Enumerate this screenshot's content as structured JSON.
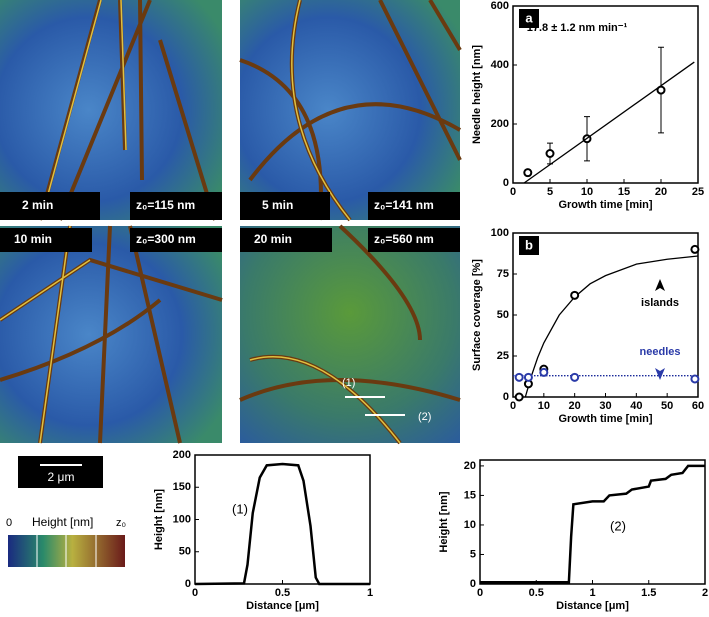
{
  "images": [
    {
      "time": "2 min",
      "z0": "z₀=115 nm"
    },
    {
      "time": "5 min",
      "z0": "z₀=141 nm"
    },
    {
      "time": "10 min",
      "z0": "z₀=300 nm"
    },
    {
      "time": "20 min",
      "z0": "z₀=560 nm"
    }
  ],
  "image_markers": [
    "(1)",
    "(2)"
  ],
  "scale_bar": "2 μm",
  "colorbar": {
    "title": "Height [nm]",
    "min_label": "0",
    "max_label": "z₀"
  },
  "chart_data": [
    {
      "type": "scatter",
      "panel_label": "a",
      "annotation": "17.8 ± 1.2 nm min⁻¹",
      "xlabel": "Growth time [min]",
      "ylabel": "Needle height [nm]",
      "xlim": [
        0,
        25
      ],
      "xticks": [
        0,
        5,
        10,
        15,
        20,
        25
      ],
      "ylim": [
        0,
        600
      ],
      "yticks": [
        0,
        200,
        400,
        600
      ],
      "series": [
        {
          "style": "markers",
          "color": "#000000",
          "x": [
            2,
            5,
            10,
            20
          ],
          "values": [
            35,
            100,
            150,
            315
          ],
          "errors": [
            10,
            35,
            75,
            145
          ]
        },
        {
          "style": "line",
          "color": "#000000",
          "x": [
            1.5,
            24.5
          ],
          "values": [
            0,
            410
          ]
        }
      ]
    },
    {
      "type": "scatter",
      "panel_label": "b",
      "annotations": [
        "islands",
        "needles"
      ],
      "xlabel": "Growth time [min]",
      "ylabel": "Surface coverage [%]",
      "xlim": [
        0,
        60
      ],
      "xticks": [
        0,
        10,
        20,
        30,
        40,
        50,
        60
      ],
      "ylim": [
        0,
        100
      ],
      "yticks": [
        0,
        25,
        50,
        75,
        100
      ],
      "series": [
        {
          "style": "line",
          "color": "#000000",
          "x": [
            4,
            6,
            8,
            10,
            15,
            20,
            25,
            30,
            40,
            50,
            60
          ],
          "values": [
            0,
            13,
            24,
            33,
            50,
            61,
            69,
            74,
            81,
            84,
            86
          ]
        },
        {
          "style": "dotted",
          "color": "#1a2a9a",
          "x": [
            0,
            60
          ],
          "values": [
            13,
            13
          ]
        },
        {
          "style": "markers",
          "color": "#000000",
          "x": [
            2,
            5,
            10,
            20,
            59
          ],
          "values": [
            0,
            8,
            17,
            62,
            90
          ]
        },
        {
          "style": "markers",
          "color": "#2a3aa8",
          "x": [
            2,
            5,
            10,
            20,
            59
          ],
          "values": [
            12,
            12,
            15,
            12,
            11
          ]
        }
      ]
    },
    {
      "type": "line",
      "annotation": "(1)",
      "xlabel": "Distance [μm]",
      "ylabel": "Height [nm]",
      "xlim": [
        0,
        1
      ],
      "xticks": [
        0,
        0.5,
        1
      ],
      "ylim": [
        0,
        200
      ],
      "yticks": [
        0,
        50,
        100,
        150,
        200
      ],
      "series": [
        {
          "style": "line",
          "color": "#000000",
          "x": [
            0,
            0.28,
            0.3,
            0.33,
            0.37,
            0.41,
            0.5,
            0.59,
            0.62,
            0.66,
            0.69,
            0.71,
            1
          ],
          "values": [
            0,
            1,
            30,
            110,
            165,
            184,
            186,
            184,
            160,
            90,
            10,
            0,
            0
          ]
        }
      ]
    },
    {
      "type": "line",
      "annotation": "(2)",
      "xlabel": "Distance [μm]",
      "ylabel": "Height [nm]",
      "xlim": [
        0,
        2
      ],
      "xticks": [
        0,
        0.5,
        1,
        1.5,
        2
      ],
      "ylim": [
        0,
        21
      ],
      "yticks": [
        0,
        5,
        10,
        15,
        20
      ],
      "series": [
        {
          "style": "line",
          "color": "#000000",
          "x": [
            0,
            0.79,
            0.81,
            0.83,
            1.0,
            1.1,
            1.15,
            1.3,
            1.35,
            1.5,
            1.52,
            1.65,
            1.7,
            1.8,
            1.85,
            2
          ],
          "values": [
            0.3,
            0.3,
            8,
            13.5,
            14,
            14,
            15,
            15.3,
            16,
            16.5,
            17.5,
            17.8,
            18.5,
            18.8,
            20,
            20
          ]
        }
      ]
    }
  ]
}
